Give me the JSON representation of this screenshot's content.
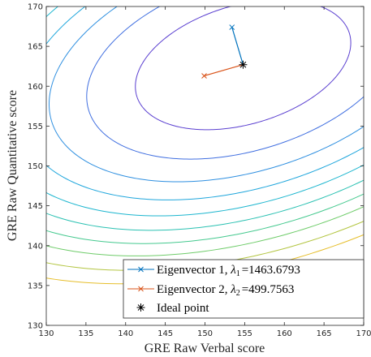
{
  "chart_data": {
    "type": "line",
    "title": "",
    "xlabel": "GRE Raw Verbal score",
    "ylabel": "GRE Raw Quantitative score",
    "xlim": [
      130,
      170
    ],
    "ylim": [
      130,
      170
    ],
    "x_ticks": [
      130,
      135,
      140,
      145,
      150,
      155,
      160,
      165,
      170
    ],
    "y_ticks": [
      130,
      135,
      140,
      145,
      150,
      155,
      160,
      165,
      170
    ],
    "grid": false,
    "legend_position": "bottom-right",
    "ideal_point": {
      "x": 154.8,
      "y": 162.7
    },
    "eigenvectors": [
      {
        "label_prefix": "Eigenvector 1, ",
        "lambda_symbol": "λ",
        "lambda_index": "1",
        "lambda_value": "=1463.6793",
        "color": "#0072BD",
        "start": [
          154.8,
          162.7
        ],
        "end": [
          153.4,
          167.4
        ]
      },
      {
        "label_prefix": "Eigenvector 2, ",
        "lambda_symbol": "λ",
        "lambda_index": "2",
        "lambda_value": "=499.7563",
        "color": "#D95319",
        "start": [
          154.8,
          162.7
        ],
        "end": [
          149.9,
          161.3
        ]
      }
    ],
    "ideal_point_label": "Ideal point",
    "contours": {
      "center": [
        154.8,
        162.7
      ],
      "params": {
        "a": 0.0002265,
        "b": -0.0001268,
        "c": 0.000627
      },
      "levels": [
        0.037,
        0.078,
        0.12,
        0.16,
        0.2,
        0.24,
        0.28,
        0.32,
        0.37,
        0.42
      ],
      "colors": [
        "#5a3fd0",
        "#3f6ee0",
        "#2e8fe0",
        "#1fa6dc",
        "#1db6cf",
        "#2ac1b2",
        "#45c98f",
        "#6fcc6a",
        "#b3c541",
        "#e6be2b"
      ]
    }
  }
}
